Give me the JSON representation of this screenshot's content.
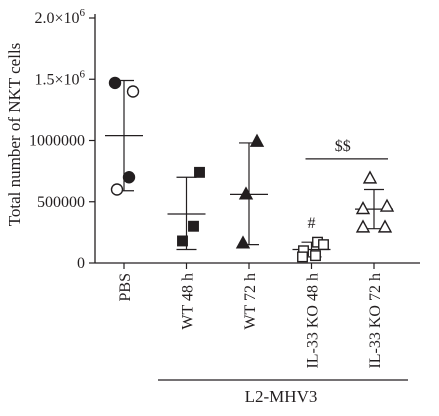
{
  "chart_data": {
    "type": "scatter",
    "ylabel": "Total number of NKT cells",
    "ylim": [
      0,
      2000000
    ],
    "ytick_labels": [
      {
        "value": 0,
        "base": "0",
        "exp": ""
      },
      {
        "value": 500000,
        "base": "500000",
        "exp": ""
      },
      {
        "value": 1000000,
        "base": "1000000",
        "exp": ""
      },
      {
        "value": 1500000,
        "base": "1.5×10",
        "exp": "6"
      },
      {
        "value": 2000000,
        "base": "2.0×10",
        "exp": "6"
      }
    ],
    "categories": [
      "PBS",
      "WT 48 h",
      "WT 72 h",
      "IL-33 KO 48 h",
      "IL-33 KO 72 h"
    ],
    "groups": [
      {
        "category": "PBS",
        "points": [
          {
            "y": 1470000,
            "marker": "circle",
            "filled": true
          },
          {
            "y": 1400000,
            "marker": "circle",
            "filled": false
          },
          {
            "y": 700000,
            "marker": "circle",
            "filled": true
          },
          {
            "y": 600000,
            "marker": "circle",
            "filled": false
          }
        ],
        "mean": 1040000,
        "upper": 1490000,
        "lower": 590000
      },
      {
        "category": "WT 48 h",
        "points": [
          {
            "y": 740000,
            "marker": "square",
            "filled": true
          },
          {
            "y": 300000,
            "marker": "square",
            "filled": true
          },
          {
            "y": 180000,
            "marker": "square",
            "filled": true
          }
        ],
        "mean": 400000,
        "upper": 700000,
        "lower": 110000
      },
      {
        "category": "WT 72 h",
        "points": [
          {
            "y": 990000,
            "marker": "triangle",
            "filled": true
          },
          {
            "y": 560000,
            "marker": "triangle",
            "filled": true
          },
          {
            "y": 160000,
            "marker": "triangle",
            "filled": true
          }
        ],
        "mean": 560000,
        "upper": 980000,
        "lower": 150000
      },
      {
        "category": "IL-33 KO 48 h",
        "points": [
          {
            "y": 170000,
            "marker": "square",
            "filled": false
          },
          {
            "y": 150000,
            "marker": "square",
            "filled": false
          },
          {
            "y": 100000,
            "marker": "square",
            "filled": false
          },
          {
            "y": 60000,
            "marker": "square",
            "filled": false
          },
          {
            "y": 50000,
            "marker": "square",
            "filled": false
          }
        ],
        "mean": 110000,
        "upper": 170000,
        "lower": 50000
      },
      {
        "category": "IL-33 KO 72 h",
        "points": [
          {
            "y": 690000,
            "marker": "triangle",
            "filled": false
          },
          {
            "y": 460000,
            "marker": "triangle",
            "filled": false
          },
          {
            "y": 440000,
            "marker": "triangle",
            "filled": false
          },
          {
            "y": 290000,
            "marker": "triangle",
            "filled": false
          },
          {
            "y": 290000,
            "marker": "triangle",
            "filled": false
          }
        ],
        "mean": 440000,
        "upper": 600000,
        "lower": 280000
      }
    ],
    "annotations": {
      "hash": {
        "text": "#",
        "category": "IL-33 KO 48 h"
      },
      "dollars": {
        "text": "$$",
        "from": "IL-33 KO 48 h",
        "to": "IL-33 KO 72 h",
        "y": 850000
      }
    },
    "group_label": "L2-MHV3",
    "grid": false,
    "legend": "none"
  }
}
